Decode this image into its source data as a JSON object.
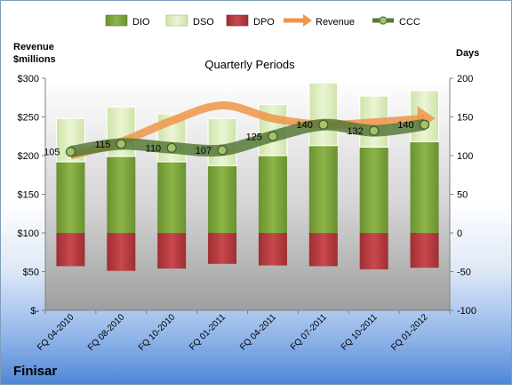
{
  "legend": [
    {
      "key": "dio",
      "label": "DIO"
    },
    {
      "key": "dso",
      "label": "DSO"
    },
    {
      "key": "dpo",
      "label": "DPO"
    },
    {
      "key": "revenue",
      "label": "Revenue"
    },
    {
      "key": "ccc",
      "label": "CCC"
    }
  ],
  "company": "Finisar",
  "colors": {
    "dio": "#7aa035",
    "dso": "#d8ebb4",
    "dpo": "#b5373c",
    "revenue": "#f0944a",
    "ccc": "#56793a"
  },
  "chart_data": {
    "type": "bar",
    "title": "Quarterly Periods",
    "ylabel_left": "Revenue\n$millions",
    "ylabel_right": "Days",
    "categories": [
      "FQ 04-2010",
      "FQ 08-2010",
      "FQ 10-2010",
      "FQ 01-2011",
      "FQ 04-2011",
      "FQ 07-2011",
      "FQ 10-2011",
      "FQ 01-2012"
    ],
    "left_axis": {
      "ylim": [
        0,
        300
      ],
      "ticks": [
        0,
        50,
        100,
        150,
        200,
        250,
        300
      ],
      "tick_labels": [
        "$-",
        "$50",
        "$100",
        "$150",
        "$200",
        "$250",
        "$300"
      ]
    },
    "right_axis": {
      "ylim": [
        -100,
        200
      ],
      "ticks": [
        -100,
        -50,
        0,
        50,
        100,
        150,
        200
      ],
      "tick_labels": [
        "-100",
        "-50",
        "0",
        "50",
        "100",
        "150",
        "200"
      ]
    },
    "series": [
      {
        "name": "DIO",
        "type": "bar",
        "axis": "right",
        "values": [
          92,
          99,
          92,
          87,
          100,
          113,
          111,
          118
        ]
      },
      {
        "name": "DSO",
        "type": "bar",
        "axis": "right",
        "stacked_on": "DIO",
        "values": [
          56,
          64,
          62,
          61,
          66,
          81,
          66,
          66
        ]
      },
      {
        "name": "DPO",
        "type": "bar",
        "axis": "right",
        "values": [
          -43,
          -49,
          -46,
          -40,
          -42,
          -43,
          -47,
          -45
        ]
      },
      {
        "name": "Revenue",
        "type": "line",
        "axis": "left",
        "values": [
          200,
          218,
          245,
          265,
          248,
          240,
          243,
          248
        ]
      },
      {
        "name": "CCC",
        "type": "line",
        "axis": "right",
        "values": [
          105,
          115,
          110,
          107,
          125,
          140,
          132,
          140
        ],
        "data_labels": [
          "105",
          "115",
          "110",
          "107",
          "125",
          "140",
          "132",
          "140"
        ]
      }
    ],
    "grid": false,
    "legend_position": "top"
  }
}
